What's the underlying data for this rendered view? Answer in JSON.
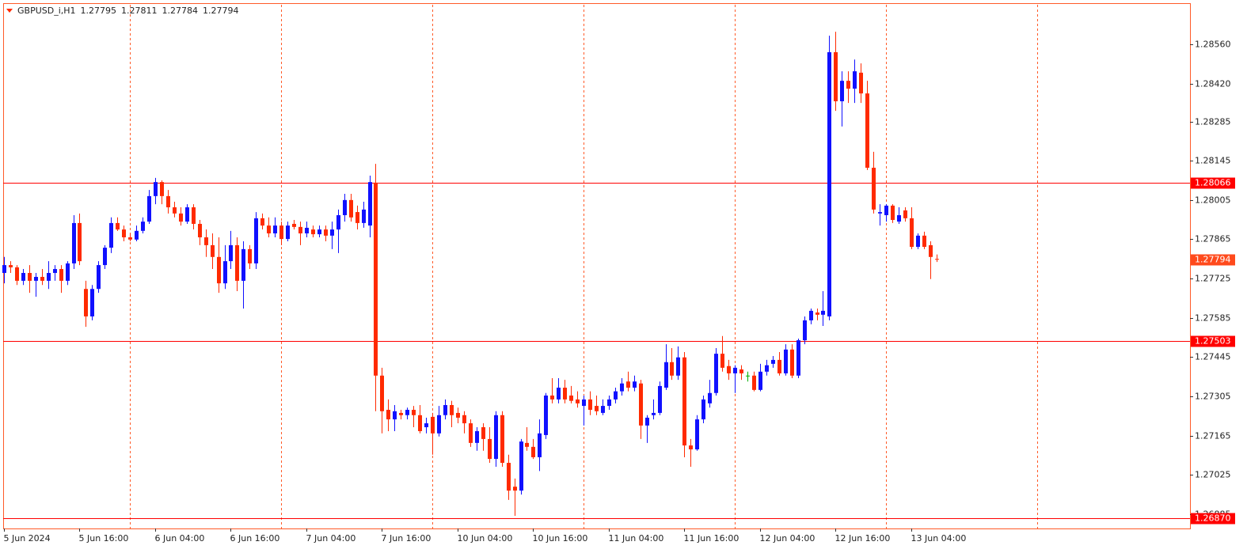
{
  "chart_data": {
    "type": "candlestick",
    "symbol": "GBPUSD_i,H1",
    "categories": [
      "5 Jun 2024",
      null,
      null,
      null,
      null,
      null,
      null,
      null,
      null,
      null,
      null,
      null,
      "5 Jun 16:00",
      null,
      null,
      null,
      null,
      null,
      null,
      null,
      null,
      null,
      null,
      null,
      "6 Jun 04:00",
      null,
      null,
      null,
      null,
      null,
      null,
      null,
      null,
      null,
      null,
      null,
      "6 Jun 16:00",
      null,
      null,
      null,
      null,
      null,
      null,
      null,
      null,
      null,
      null,
      null,
      "7 Jun 04:00",
      null,
      null,
      null,
      null,
      null,
      null,
      null,
      null,
      null,
      null,
      null,
      "7 Jun 16:00",
      null,
      null,
      null,
      null,
      null,
      null,
      null,
      null,
      null,
      null,
      null,
      "10 Jun 04:00",
      null,
      null,
      null,
      null,
      null,
      null,
      null,
      null,
      null,
      null,
      null,
      "10 Jun 16:00",
      null,
      null,
      null,
      null,
      null,
      null,
      null,
      null,
      null,
      null,
      null,
      "11 Jun 04:00",
      null,
      null,
      null,
      null,
      null,
      null,
      null,
      null,
      null,
      null,
      null,
      "11 Jun 16:00",
      null,
      null,
      null,
      null,
      null,
      null,
      null,
      null,
      null,
      null,
      null,
      "12 Jun 04:00",
      null,
      null,
      null,
      null,
      null,
      null,
      null,
      null,
      null,
      null,
      null,
      "12 Jun 16:00",
      null,
      null,
      null,
      null,
      null,
      null,
      null,
      null,
      null,
      null,
      null,
      "13 Jun 04:00",
      null,
      null,
      null,
      null
    ],
    "open": [
      1.27745,
      1.27773,
      1.27765,
      1.27717,
      1.27745,
      1.27717,
      1.27731,
      1.27717,
      1.27745,
      1.27759,
      1.27717,
      1.27779,
      1.27923,
      1.27688,
      1.2759,
      1.27688,
      1.27773,
      1.27835,
      1.27923,
      1.279,
      1.27872,
      1.27864,
      1.27895,
      1.27928,
      1.28019,
      1.28069,
      1.28019,
      1.27979,
      1.27957,
      1.27928,
      1.27979,
      1.2792,
      1.27872,
      1.27844,
      1.27802,
      1.27708,
      1.27787,
      1.27844,
      1.27717,
      1.2783,
      1.27779,
      1.2794,
      1.27914,
      1.27886,
      1.27914,
      1.27866,
      1.2792,
      1.27909,
      1.27886,
      1.279,
      1.27883,
      1.279,
      1.27878,
      1.279,
      1.27951,
      1.28005,
      1.27962,
      1.27923,
      1.27914,
      1.28067,
      1.27379,
      1.27257,
      1.27223,
      1.27246,
      1.27238,
      1.27257,
      1.27238,
      1.27195,
      1.27232,
      1.27173,
      1.27238,
      1.27274,
      1.27246,
      1.27238,
      1.27209,
      1.27139,
      1.27195,
      1.27153,
      1.27082,
      1.27238,
      1.27068,
      1.26983,
      1.26969,
      1.27139,
      1.27125,
      1.27088,
      1.27167,
      1.27308,
      1.27294,
      1.27336,
      1.27308,
      1.27294,
      1.27271,
      1.27294,
      1.27271,
      1.27246,
      1.27271,
      1.27294,
      1.27323,
      1.27358,
      1.27336,
      1.27351,
      1.27201,
      1.27238,
      1.27246,
      1.27336,
      1.27427,
      1.27379,
      1.27444,
      1.2713,
      1.27116,
      1.27223,
      1.2728,
      1.27317,
      1.27457,
      1.27413,
      1.27387,
      1.27401,
      1.27379,
      1.27379,
      1.27328,
      1.27393,
      1.27421,
      1.27435,
      1.27387,
      1.27472,
      1.27379,
      1.27505,
      1.27576,
      1.27604,
      1.27596,
      1.2759,
      1.28532,
      1.28357,
      1.2843,
      1.28402,
      1.28459,
      1.28385,
      1.2812,
      1.27957,
      1.27951,
      1.27985,
      1.27928,
      1.27968,
      1.2794,
      1.27838,
      1.27878,
      1.27844,
      1.27795
    ],
    "high": [
      1.27802,
      1.27787,
      1.27773,
      1.27759,
      1.27773,
      1.27745,
      1.27759,
      1.27787,
      1.27773,
      1.27773,
      1.27787,
      1.27951,
      1.27957,
      1.27717,
      1.27702,
      1.27787,
      1.27844,
      1.27943,
      1.27943,
      1.27914,
      1.27886,
      1.27914,
      1.27943,
      1.28041,
      1.28084,
      1.28075,
      1.28041,
      1.27999,
      1.27979,
      1.2799,
      1.2799,
      1.27934,
      1.279,
      1.27886,
      1.27872,
      1.27844,
      1.27895,
      1.27872,
      1.27858,
      1.27844,
      1.27962,
      1.27957,
      1.27943,
      1.27943,
      1.27928,
      1.27928,
      1.27934,
      1.27928,
      1.27928,
      1.27914,
      1.27914,
      1.27914,
      1.27928,
      1.27971,
      1.28027,
      1.28027,
      1.27985,
      1.27999,
      1.28092,
      1.28134,
      1.27407,
      1.27294,
      1.27274,
      1.27257,
      1.27265,
      1.27271,
      1.27274,
      1.27229,
      1.27246,
      1.27271,
      1.27294,
      1.27289,
      1.27265,
      1.27252,
      1.27223,
      1.27195,
      1.27209,
      1.27195,
      1.27252,
      1.27252,
      1.27097,
      1.27012,
      1.27153,
      1.27195,
      1.27153,
      1.27223,
      1.27317,
      1.2737,
      1.2737,
      1.27364,
      1.27342,
      1.27323,
      1.27308,
      1.27323,
      1.27308,
      1.27294,
      1.27308,
      1.27336,
      1.2737,
      1.27393,
      1.27379,
      1.27364,
      1.27238,
      1.27294,
      1.27358,
      1.27491,
      1.27477,
      1.27483,
      1.27463,
      1.27153,
      1.27238,
      1.27308,
      1.27364,
      1.27477,
      1.2752,
      1.27435,
      1.27416,
      1.27416,
      1.27393,
      1.27393,
      1.27421,
      1.27435,
      1.27449,
      1.27463,
      1.27491,
      1.27491,
      1.27511,
      1.2759,
      1.27618,
      1.27618,
      1.2768,
      1.28591,
      1.28605,
      1.28464,
      1.28464,
      1.28506,
      1.28492,
      1.2843,
      1.28177,
      1.2799,
      1.2799,
      1.2799,
      1.27979,
      1.27979,
      1.27979,
      1.27886,
      1.27892,
      1.27858,
      1.27811
    ],
    "low": [
      1.27708,
      1.27745,
      1.27702,
      1.27702,
      1.27674,
      1.2766,
      1.27702,
      1.27688,
      1.27717,
      1.27674,
      1.27702,
      1.27759,
      1.27773,
      1.27553,
      1.27576,
      1.27674,
      1.27759,
      1.27816,
      1.27895,
      1.27858,
      1.27858,
      1.27858,
      1.27886,
      1.2792,
      1.2799,
      1.2799,
      1.27957,
      1.27943,
      1.27914,
      1.2792,
      1.279,
      1.27844,
      1.27802,
      1.27759,
      1.27674,
      1.27688,
      1.27759,
      1.2768,
      1.27618,
      1.27759,
      1.27759,
      1.279,
      1.27872,
      1.27872,
      1.27844,
      1.27858,
      1.279,
      1.27844,
      1.27872,
      1.27872,
      1.27872,
      1.27858,
      1.2783,
      1.27816,
      1.27928,
      1.27928,
      1.279,
      1.27906,
      1.27872,
      1.27252,
      1.27173,
      1.27181,
      1.27181,
      1.27223,
      1.27223,
      1.27195,
      1.27173,
      1.27173,
      1.27097,
      1.27162,
      1.27223,
      1.27195,
      1.27209,
      1.27173,
      1.27125,
      1.27111,
      1.27111,
      1.27068,
      1.27054,
      1.27054,
      1.26936,
      1.26879,
      1.26955,
      1.27111,
      1.27082,
      1.27039,
      1.27153,
      1.2728,
      1.2728,
      1.2728,
      1.2728,
      1.27265,
      1.27201,
      1.27238,
      1.27238,
      1.27238,
      1.27257,
      1.2728,
      1.27308,
      1.27323,
      1.27323,
      1.27153,
      1.27139,
      1.27223,
      1.27238,
      1.27328,
      1.27364,
      1.27364,
      1.27088,
      1.27054,
      1.27111,
      1.27209,
      1.27265,
      1.27308,
      1.27393,
      1.27364,
      1.27317,
      1.27364,
      1.27358,
      1.27323,
      1.27323,
      1.27379,
      1.27407,
      1.27379,
      1.27379,
      1.2737,
      1.2737,
      1.27491,
      1.27562,
      1.27576,
      1.27556,
      1.27576,
      1.28323,
      1.28267,
      1.28351,
      1.28351,
      1.28351,
      1.28112,
      1.27957,
      1.27914,
      1.27928,
      1.27923,
      1.2792,
      1.27928,
      1.2783,
      1.2783,
      1.2783,
      1.27723,
      1.27784
    ],
    "close": [
      1.27773,
      1.27765,
      1.27717,
      1.27745,
      1.27717,
      1.27731,
      1.27717,
      1.27745,
      1.27759,
      1.27717,
      1.27779,
      1.27923,
      1.27787,
      1.2759,
      1.27688,
      1.27773,
      1.27835,
      1.27923,
      1.279,
      1.27872,
      1.27864,
      1.27895,
      1.27928,
      1.28019,
      1.28069,
      1.28019,
      1.27979,
      1.27957,
      1.27928,
      1.27979,
      1.2792,
      1.27872,
      1.27844,
      1.27802,
      1.27708,
      1.27787,
      1.27844,
      1.27717,
      1.2783,
      1.27779,
      1.2794,
      1.27914,
      1.27886,
      1.27914,
      1.27866,
      1.27914,
      1.27909,
      1.27886,
      1.27906,
      1.27883,
      1.279,
      1.27878,
      1.279,
      1.27951,
      1.28005,
      1.27943,
      1.27923,
      1.27971,
      1.28069,
      1.27379,
      1.27252,
      1.27223,
      1.27252,
      1.27238,
      1.27257,
      1.27238,
      1.27181,
      1.27209,
      1.27173,
      1.27238,
      1.27274,
      1.27238,
      1.27229,
      1.27209,
      1.27139,
      1.27181,
      1.27153,
      1.27082,
      1.27238,
      1.27068,
      1.26969,
      1.26969,
      1.27144,
      1.27125,
      1.27088,
      1.27173,
      1.27308,
      1.27294,
      1.27336,
      1.27294,
      1.27289,
      1.2728,
      1.27294,
      1.27257,
      1.27252,
      1.27271,
      1.27294,
      1.27323,
      1.27351,
      1.27336,
      1.27358,
      1.27201,
      1.27229,
      1.27246,
      1.27342,
      1.27427,
      1.27379,
      1.27444,
      1.2713,
      1.27116,
      1.27223,
      1.27294,
      1.27317,
      1.27457,
      1.27407,
      1.27387,
      1.27407,
      1.27387,
      1.27379,
      1.27328,
      1.27393,
      1.27416,
      1.27435,
      1.27387,
      1.27472,
      1.27379,
      1.27505,
      1.27576,
      1.2761,
      1.27596,
      1.2761,
      1.28532,
      1.28357,
      1.2843,
      1.28402,
      1.28464,
      1.28385,
      1.2812,
      1.27971,
      1.27962,
      1.27985,
      1.27934,
      1.27951,
      1.2794,
      1.27838,
      1.27878,
      1.27838,
      1.27802,
      1.27794
    ],
    "up_color": "#1010ff",
    "down_color": "#ff2a00",
    "doji_color": "#00b000",
    "xlim": [
      0,
      188
    ],
    "grid_x": [
      20,
      44,
      68,
      92,
      116,
      140,
      164
    ],
    "grid_color": "#ff5a28",
    "ylim": [
      1.26834,
      1.28704
    ],
    "yticks": [
      {
        "value": 1.2856,
        "label": "1.28560"
      },
      {
        "value": 1.2842,
        "label": "1.28420"
      },
      1.28285,
      1.28145,
      1.28005,
      1.27865,
      1.27725,
      1.27585,
      1.27445,
      1.27305,
      1.27165,
      1.27025,
      1.26885
    ],
    "hlines": [
      1.28066,
      1.27503,
      {
        "value": 1.2687,
        "label": "1.26870"
      }
    ],
    "hline_color": "#ff0000",
    "price_label_color": "#ff4a1c"
  }
}
